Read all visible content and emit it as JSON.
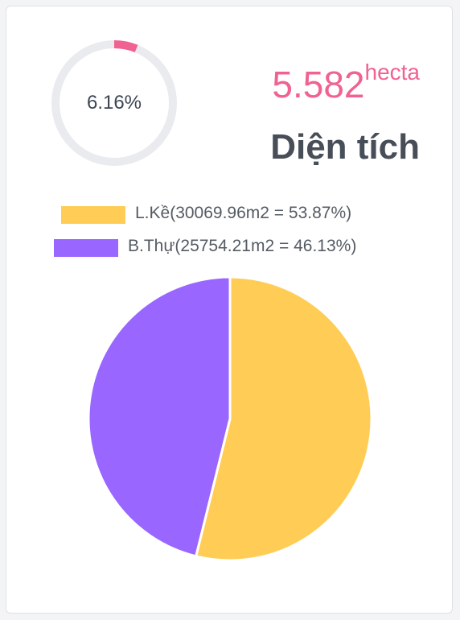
{
  "gauge": {
    "label": "6.16%",
    "fraction": 0.0616,
    "track_color": "#e9ebee",
    "fill_color": "#f06292"
  },
  "summary": {
    "value": "5.582",
    "unit": "hecta",
    "title": "Diện tích",
    "value_color": "#f06292"
  },
  "legend": [
    {
      "label": "L.Kề(30069.96m2 = 53.87%)",
      "color": "#ffcd56"
    },
    {
      "label": "B.Thự(25754.21m2 = 46.13%)",
      "color": "#9966ff"
    }
  ],
  "chart_data": {
    "type": "pie",
    "categories": [
      "L.Kề",
      "B.Thự"
    ],
    "values": [
      30069.96,
      25754.21
    ],
    "percentages": [
      53.87,
      46.13
    ],
    "colors": [
      "#ffcd56",
      "#9966ff"
    ],
    "legend_position": "top"
  }
}
